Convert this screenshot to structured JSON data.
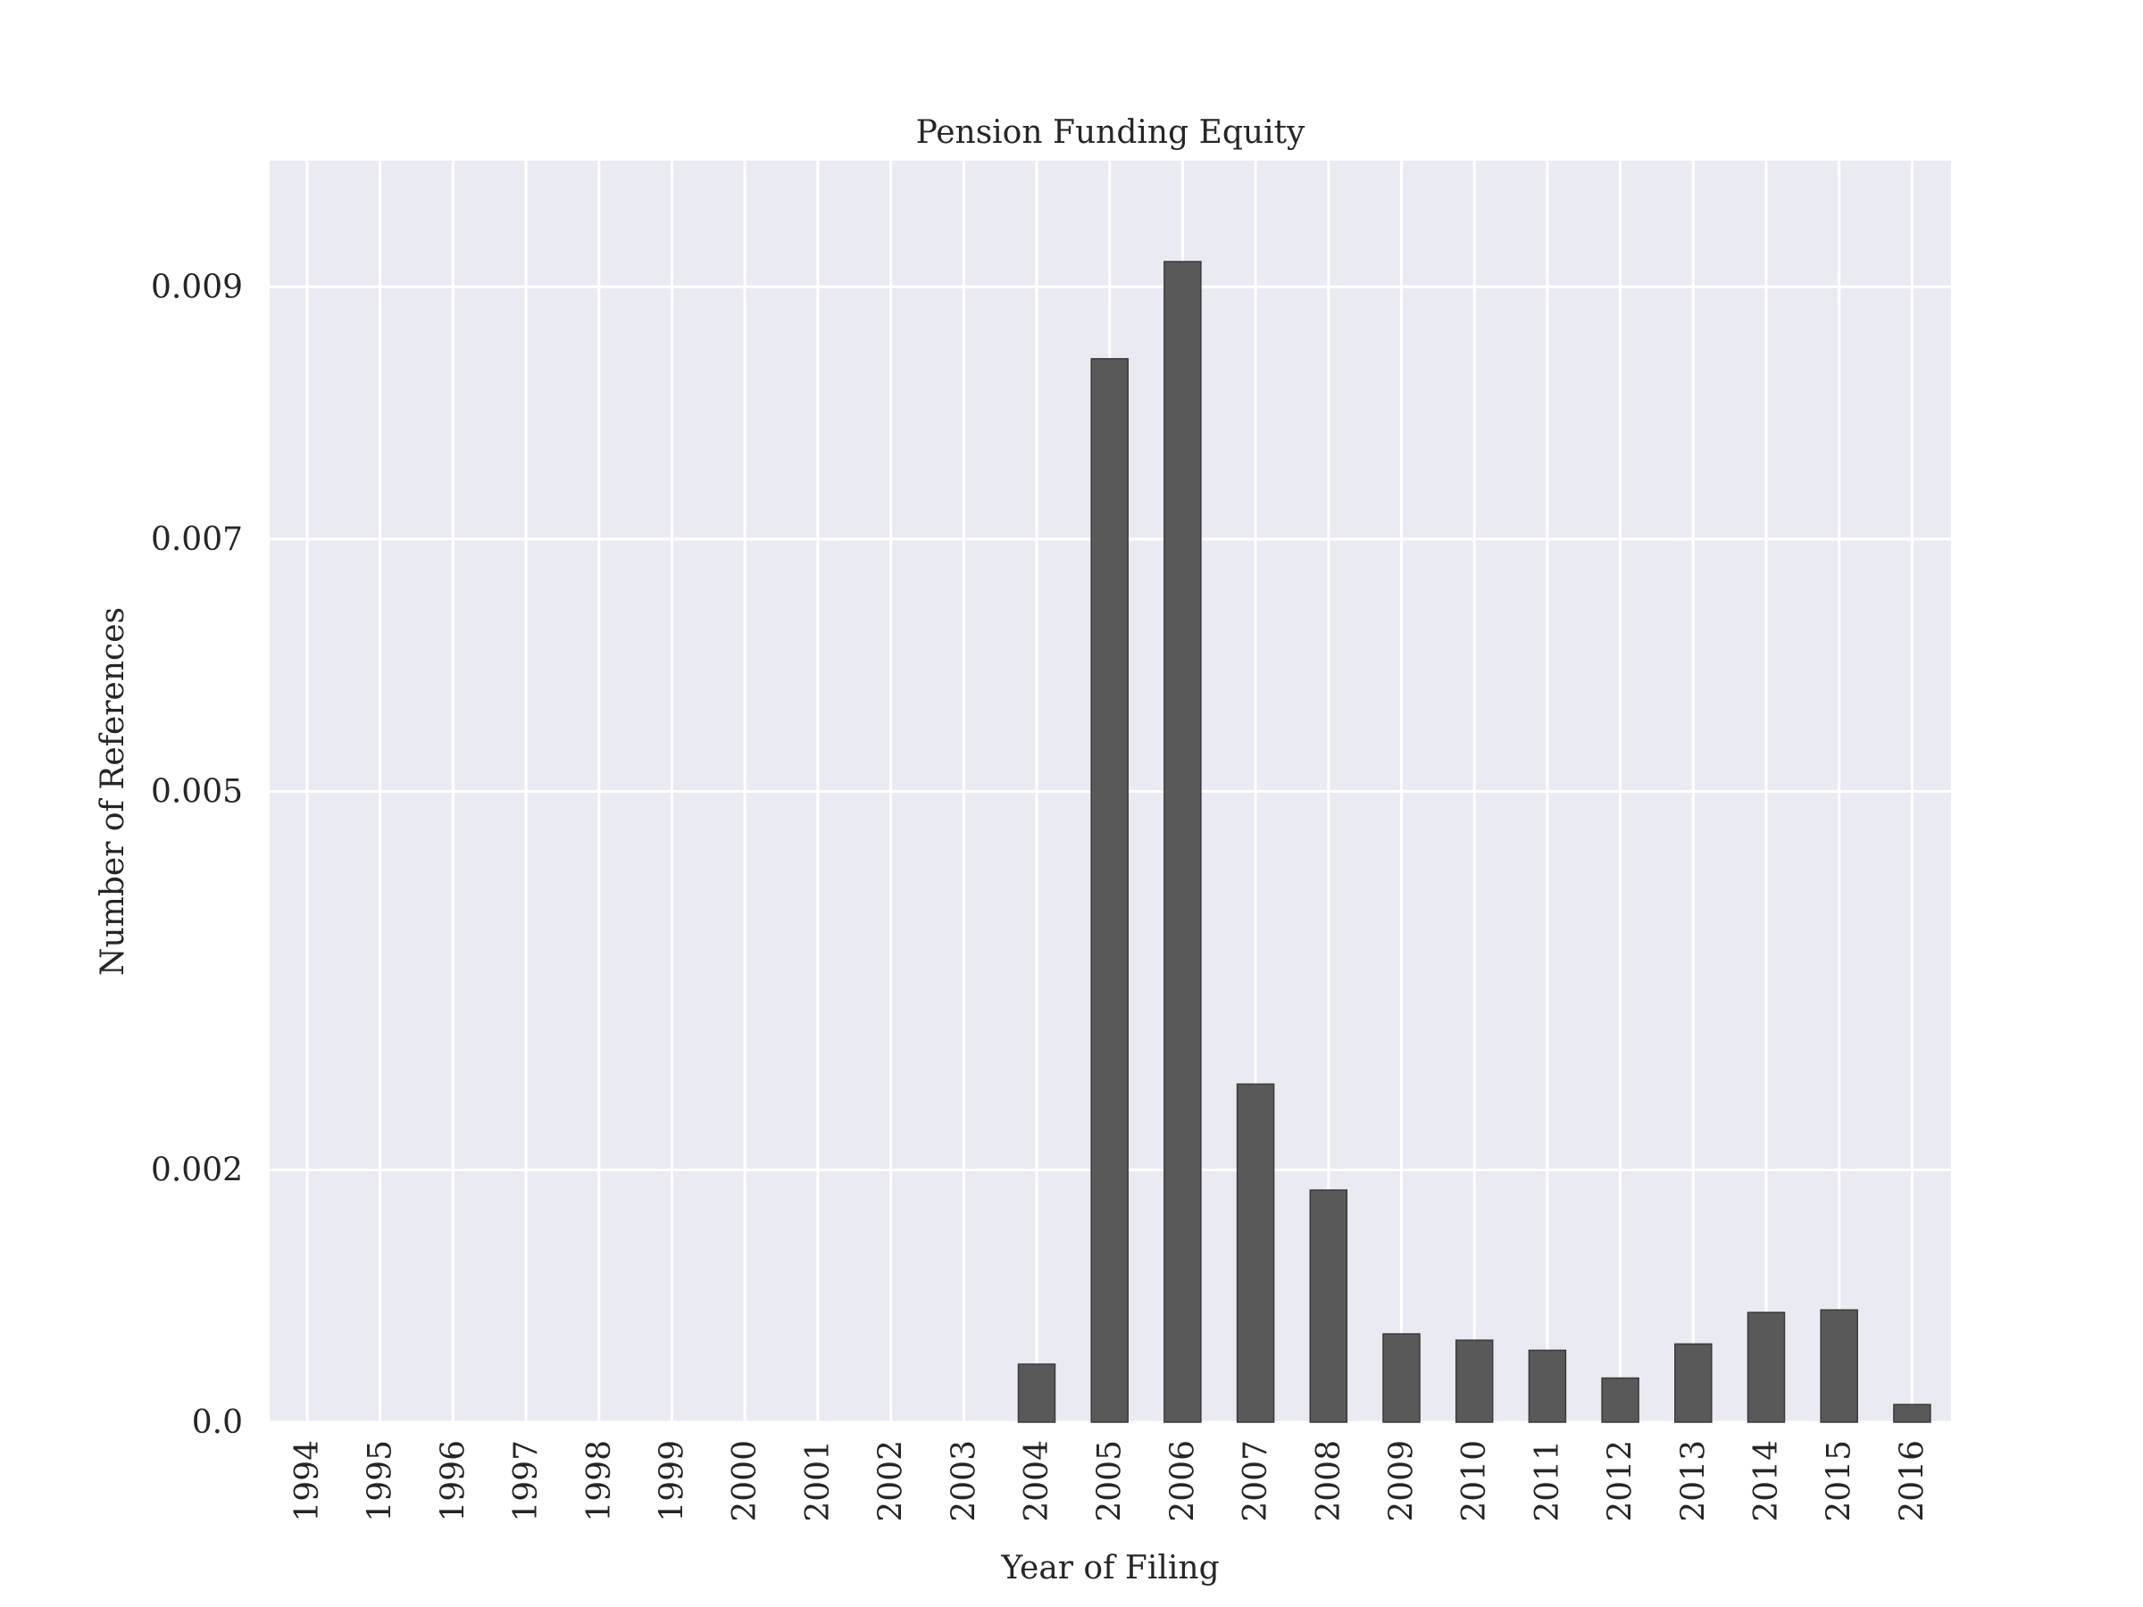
{
  "chart_data": {
    "type": "bar",
    "title": "Pension Funding Equity",
    "xlabel": "Year of Filing",
    "ylabel": "Number of References",
    "categories": [
      "1994",
      "1995",
      "1996",
      "1997",
      "1998",
      "1999",
      "2000",
      "2001",
      "2002",
      "2003",
      "2004",
      "2005",
      "2006",
      "2007",
      "2008",
      "2009",
      "2010",
      "2011",
      "2012",
      "2013",
      "2014",
      "2015",
      "2016"
    ],
    "values": [
      0,
      0,
      0,
      0,
      0,
      0,
      0,
      0,
      0,
      0,
      0.00046,
      0.00843,
      0.0092,
      0.00268,
      0.00184,
      0.0007,
      0.00065,
      0.00057,
      0.00035,
      0.00062,
      0.00087,
      0.00089,
      0.00014
    ],
    "yticks": [
      0,
      0.002,
      0.005,
      0.007,
      0.009
    ],
    "ytick_labels": [
      "0.0",
      "0.002",
      "0.005",
      "0.007",
      "0.009"
    ],
    "ylim": [
      0,
      0.01
    ],
    "grid": true,
    "colors": {
      "bar": "#595959",
      "background": "#eaeaf2",
      "grid": "#ffffff"
    }
  }
}
